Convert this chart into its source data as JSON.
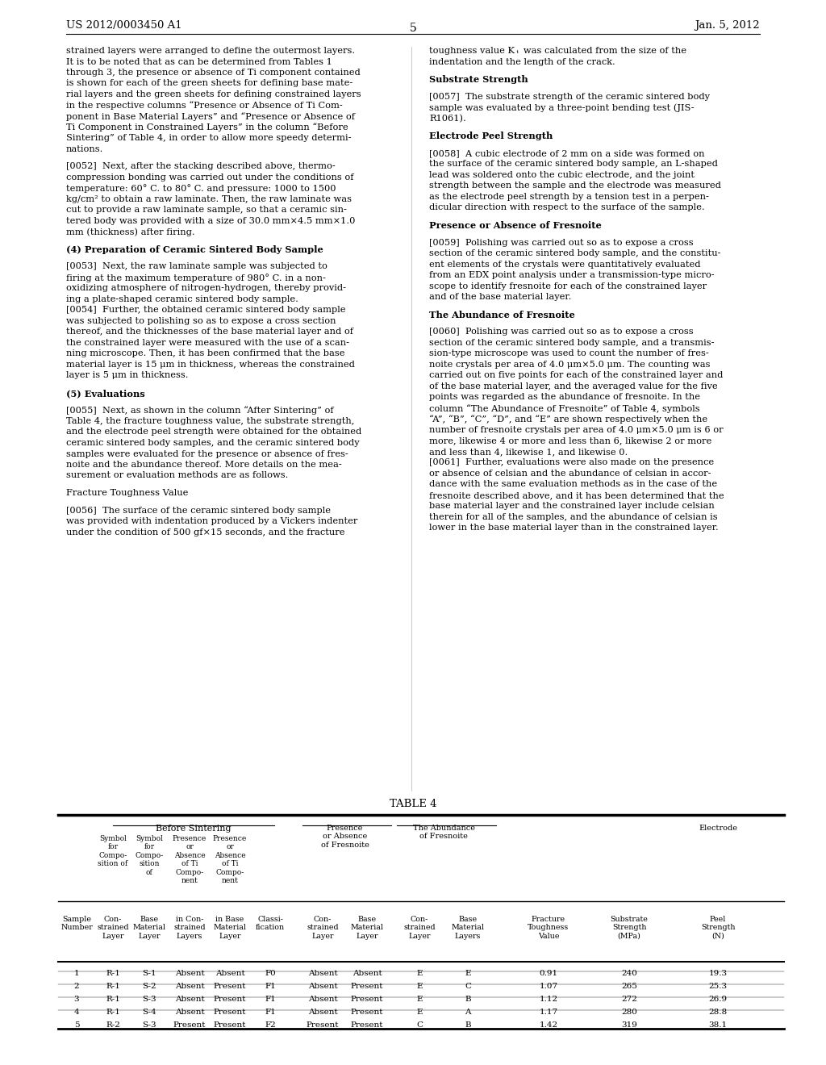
{
  "page_number": "5",
  "patent_number": "US 2012/0003450 A1",
  "date": "Jan. 5, 2012",
  "background_color": "#ffffff",
  "text_color": "#000000",
  "left_column": [
    "strained layers were arranged to define the outermost layers.",
    "It is to be noted that as can be determined from Tables 1",
    "through 3, the presence or absence of Ti component contained",
    "is shown for each of the green sheets for defining base mate-",
    "rial layers and the green sheets for defining constrained layers",
    "in the respective columns “Presence or Absence of Ti Com-",
    "ponent in Base Material Layers” and “Presence or Absence of",
    "Ti Component in Constrained Layers” in the column “Before",
    "Sintering” of Table 4, in order to allow more speedy determi-",
    "nations.",
    "",
    "[0052]  Next, after the stacking described above, thermo-",
    "compression bonding was carried out under the conditions of",
    "temperature: 60° C. to 80° C. and pressure: 1000 to 1500",
    "kg/cm² to obtain a raw laminate. Then, the raw laminate was",
    "cut to provide a raw laminate sample, so that a ceramic sin-",
    "tered body was provided with a size of 30.0 mm×4.5 mm×1.0",
    "mm (thickness) after firing.",
    "",
    "(4) Preparation of Ceramic Sintered Body Sample",
    "",
    "[0053]  Next, the raw laminate sample was subjected to",
    "firing at the maximum temperature of 980° C. in a non-",
    "oxidizing atmosphere of nitrogen-hydrogen, thereby provid-",
    "ing a plate-shaped ceramic sintered body sample.",
    "[0054]  Further, the obtained ceramic sintered body sample",
    "was subjected to polishing so as to expose a cross section",
    "thereof, and the thicknesses of the base material layer and of",
    "the constrained layer were measured with the use of a scan-",
    "ning microscope. Then, it has been confirmed that the base",
    "material layer is 15 μm in thickness, whereas the constrained",
    "layer is 5 μm in thickness.",
    "",
    "(5) Evaluations",
    "",
    "[0055]  Next, as shown in the column “After Sintering” of",
    "Table 4, the fracture toughness value, the substrate strength,",
    "and the electrode peel strength were obtained for the obtained",
    "ceramic sintered body samples, and the ceramic sintered body",
    "samples were evaluated for the presence or absence of fres-",
    "noite and the abundance thereof. More details on the mea-",
    "surement or evaluation methods are as follows.",
    "",
    "Fracture Toughness Value",
    "",
    "[0056]  The surface of the ceramic sintered body sample",
    "was provided with indentation produced by a Vickers indenter",
    "under the condition of 500 gf×15 seconds, and the fracture"
  ],
  "right_column": [
    "toughness value K ₜ  was calculated from the size of the",
    "indentation and the length of the crack.",
    "",
    "Substrate Strength",
    "",
    "[0057]  The substrate strength of the ceramic sintered body",
    "sample was evaluated by a three-point bending test (JIS-",
    "R1061).",
    "",
    "Electrode Peel Strength",
    "",
    "[0058]  A cubic electrode of 2 mm on a side was formed on",
    "the surface of the ceramic sintered body sample, an L-shaped",
    "lead was soldered onto the cubic electrode, and the joint",
    "strength between the sample and the electrode was measured",
    "as the electrode peel strength by a tension test in a perpen-",
    "dicular direction with respect to the surface of the sample.",
    "",
    "Presence or Absence of Fresnoite",
    "",
    "[0059]  Polishing was carried out so as to expose a cross",
    "section of the ceramic sintered body sample, and the constitu-",
    "ent elements of the crystals were quantitatively evaluated",
    "from an EDX point analysis under a transmission-type micro-",
    "scope to identify fresnoite for each of the constrained layer",
    "and of the base material layer.",
    "",
    "The Abundance of Fresnoite",
    "",
    "[0060]  Polishing was carried out so as to expose a cross",
    "section of the ceramic sintered body sample, and a transmis-",
    "sion-type microscope was used to count the number of fres-",
    "noite crystals per area of 4.0 μm×5.0 μm. The counting was",
    "carried out on five points for each of the constrained layer and",
    "of the base material layer, and the averaged value for the five",
    "points was regarded as the abundance of fresnoite. In the",
    "column “The Abundance of Fresnoite” of Table 4, symbols",
    "“A”, “B”, “C”, “D”, and “E” are shown respectively when the",
    "number of fresnoite crystals per area of 4.0 μm×5.0 μm is 6 or",
    "more, likewise 4 or more and less than 6, likewise 2 or more",
    "and less than 4, likewise 1, and likewise 0.",
    "[0061]  Further, evaluations were also made on the presence",
    "or absence of celsian and the abundance of celsian in accor-",
    "dance with the same evaluation methods as in the case of the",
    "fresnoite described above, and it has been determined that the",
    "base material layer and the constrained layer include celsian",
    "therein for all of the samples, and the abundance of celsian is",
    "lower in the base material layer than in the constrained layer."
  ],
  "table_title": "TABLE 4",
  "table_data": {
    "header_groups": [
      {
        "text": "Before Sintering",
        "cols": [
          1,
          4
        ],
        "underline": true
      },
      {
        "text": "Presence\nor Absence\nof Fresnoite",
        "cols": [
          6,
          7
        ],
        "underline": true
      },
      {
        "text": "The Abundance\nof Fresnoite",
        "cols": [
          8,
          9
        ],
        "underline": true
      }
    ],
    "col_headers_line1": [
      "",
      "Symbol\nfor\nCompo-\nsition of",
      "Symbol\nfor\nCompo-\nsition\nof",
      "Presence\nor\nAbsence\nof Ti\nCompo-\nnent",
      "Presence\nor\nAbsence\nof Ti\nCompo-\nnent",
      "",
      "Con-\nstrained\nLayer",
      "Base\nMaterial\nLayer",
      "Con-\nstrained\nLayer",
      "Base\nMaterial\nLayers",
      "Fracture\nToughness\nValue",
      "Substrate\nStrength\n(MPa)",
      "Electrode\nPeel\nStrength\n(N)"
    ],
    "col_headers_line2": [
      "Sample\nNumber",
      "Con-\nstrained\nLayer",
      "Base\nMaterial\nLayer",
      "in Con-\nstrained\nLayers",
      "in Base\nMaterial\nLayer",
      "Classi-\nfication",
      "Con-\nstrained\nLayer",
      "Base\nMaterial\nLayer",
      "Con-\nstrained\nLayer",
      "Base\nMaterial\nLayers",
      "Fracture\nToughness\nValue",
      "Substrate\nStrength\n(MPa)",
      "Electrode\nPeel\nStrength\n(N)"
    ],
    "rows": [
      [
        "1",
        "R-1",
        "S-1",
        "Absent",
        "Absent",
        "F0",
        "Absent",
        "Absent",
        "E",
        "E",
        "0.91",
        "240",
        "19.3"
      ],
      [
        "2",
        "R-1",
        "S-2",
        "Absent",
        "Present",
        "F1",
        "Absent",
        "Present",
        "E",
        "C",
        "1.07",
        "265",
        "25.3"
      ],
      [
        "3",
        "R-1",
        "S-3",
        "Absent",
        "Present",
        "F1",
        "Absent",
        "Present",
        "E",
        "B",
        "1.12",
        "272",
        "26.9"
      ],
      [
        "4",
        "R-1",
        "S-4",
        "Absent",
        "Present",
        "F1",
        "Absent",
        "Present",
        "E",
        "A",
        "1.17",
        "280",
        "28.8"
      ],
      [
        "5",
        "R-2",
        "S-3",
        "Present",
        "Present",
        "F2",
        "Present",
        "Present",
        "C",
        "B",
        "1.42",
        "319",
        "38.1"
      ]
    ]
  }
}
